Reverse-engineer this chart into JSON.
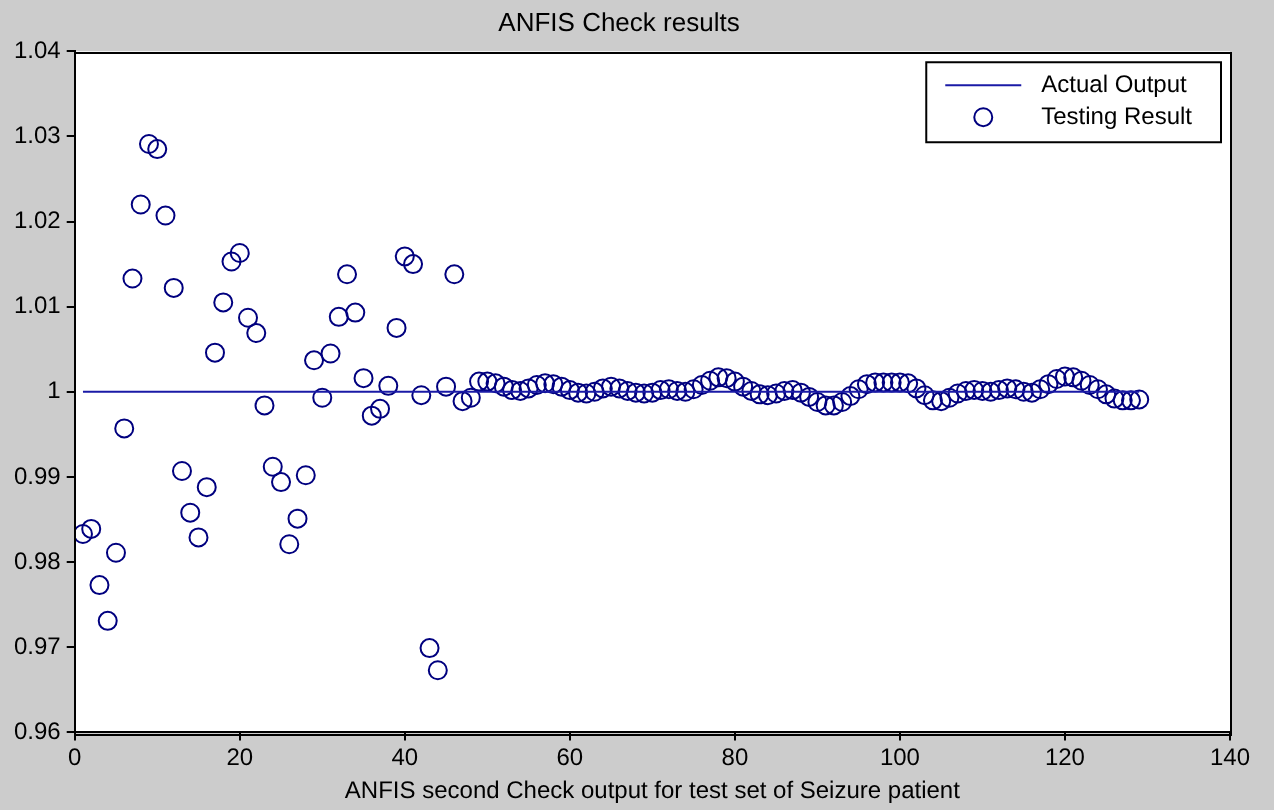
{
  "chart_data": {
    "type": "scatter",
    "title": "ANFIS Check results",
    "xlabel": "ANFIS second Check output for test set of Seizure patient",
    "x": [
      1,
      2,
      3,
      4,
      5,
      6,
      7,
      8,
      9,
      10,
      11,
      12,
      13,
      14,
      15,
      16,
      17,
      18,
      19,
      20,
      21,
      22,
      23,
      24,
      25,
      26,
      27,
      28,
      29,
      30,
      31,
      32,
      33,
      34,
      35,
      36,
      37,
      38,
      39,
      40,
      41,
      42,
      43,
      44,
      45,
      46,
      47,
      48,
      49,
      50,
      51,
      52,
      53,
      54,
      55,
      56,
      57,
      58,
      59,
      60,
      61,
      62,
      63,
      64,
      65,
      66,
      67,
      68,
      69,
      70,
      71,
      72,
      73,
      74,
      75,
      76,
      77,
      78,
      79,
      80,
      81,
      82,
      83,
      84,
      85,
      86,
      87,
      88,
      89,
      90,
      91,
      92,
      93,
      94,
      95,
      96,
      97,
      98,
      99,
      100,
      101,
      102,
      103,
      104,
      105,
      106,
      107,
      108,
      109,
      110,
      111,
      112,
      113,
      114,
      115,
      116,
      117,
      118,
      119,
      120,
      121,
      122,
      123,
      124,
      125,
      126,
      127,
      128,
      129
    ],
    "series": [
      {
        "name": "Actual Output",
        "type": "line",
        "color": "#1a1aa6",
        "marker": "none",
        "x": [
          1,
          129
        ],
        "values": [
          1,
          1
        ]
      },
      {
        "name": "Testing Result",
        "type": "scatter",
        "color": "#00007f",
        "marker": "circle",
        "values": [
          0.9833,
          0.9839,
          0.9773,
          0.9731,
          0.9811,
          0.9957,
          1.0133,
          1.022,
          1.0291,
          1.0285,
          1.0207,
          1.0122,
          0.9907,
          0.9858,
          0.9829,
          0.9888,
          1.0046,
          1.0105,
          1.0153,
          1.0163,
          1.0087,
          1.0069,
          0.9984,
          0.9912,
          0.9894,
          0.9821,
          0.9851,
          0.9902,
          1.0037,
          0.9993,
          1.0045,
          1.0088,
          1.0138,
          1.0093,
          1.0016,
          0.9972,
          0.998,
          1.0007,
          1.0075,
          1.0159,
          1.015,
          0.9996,
          0.9699,
          0.9673,
          1.0006,
          1.0138,
          0.9989,
          0.9993,
          1.0012,
          1.0012,
          1.001,
          1.0006,
          1.0002,
          1.0001,
          1.0004,
          1.0008,
          1.001,
          1.0009,
          1.0006,
          1.0002,
          0.9999,
          0.9998,
          1.0,
          1.0004,
          1.0006,
          1.0004,
          1.0001,
          0.9999,
          0.9998,
          0.9999,
          1.0002,
          1.0003,
          1.0001,
          1.0,
          1.0003,
          1.0008,
          1.0013,
          1.0017,
          1.0016,
          1.0012,
          1.0006,
          1.0001,
          0.9997,
          0.9996,
          0.9998,
          1.0001,
          1.0002,
          0.9999,
          0.9994,
          0.9988,
          0.9984,
          0.9984,
          0.9988,
          0.9995,
          1.0003,
          1.0009,
          1.0011,
          1.0011,
          1.0011,
          1.0011,
          1.001,
          1.0004,
          0.9996,
          0.999,
          0.9989,
          0.9993,
          0.9998,
          1.0001,
          1.0002,
          1.0001,
          1.0,
          1.0002,
          1.0004,
          1.0003,
          1.0,
          0.9999,
          1.0003,
          1.0009,
          1.0015,
          1.0018,
          1.0017,
          1.0013,
          1.0008,
          1.0003,
          0.9997,
          0.9992,
          0.999,
          0.999,
          0.9991
        ]
      }
    ],
    "xlim": [
      0,
      140
    ],
    "xticks": [
      0,
      20,
      40,
      60,
      80,
      100,
      120,
      140
    ],
    "ylim": [
      0.96,
      1.04
    ],
    "yticks": [
      0.96,
      0.97,
      0.98,
      0.99,
      1,
      1.01,
      1.02,
      1.03,
      1.04
    ],
    "grid": false,
    "legend": "top right"
  }
}
